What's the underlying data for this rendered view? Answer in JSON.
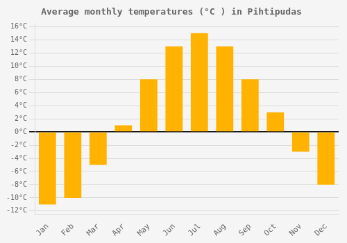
{
  "chart_data": {
    "type": "bar",
    "title": "Average monthly temperatures (°C ) in Pihtipudas",
    "categories": [
      "Jan",
      "Feb",
      "Mar",
      "Apr",
      "May",
      "Jun",
      "Jul",
      "Aug",
      "Sep",
      "Oct",
      "Nov",
      "Dec"
    ],
    "values": [
      -11,
      -10,
      -5,
      1,
      8,
      13,
      15,
      13,
      8,
      3,
      -3,
      -8
    ],
    "color": "#FFB300",
    "ylim": [
      -12.5,
      16.5
    ],
    "yticks": [
      {
        "value": -12,
        "label": "-12°C"
      },
      {
        "value": -10,
        "label": "-10°C"
      },
      {
        "value": -8,
        "label": "-8°C"
      },
      {
        "value": -6,
        "label": "-6°C"
      },
      {
        "value": -4,
        "label": "-4°C"
      },
      {
        "value": -2,
        "label": "-2°C"
      },
      {
        "value": 0,
        "label": "0°C"
      },
      {
        "value": 2,
        "label": "2°C"
      },
      {
        "value": 4,
        "label": "4°C"
      },
      {
        "value": 6,
        "label": "6°C"
      },
      {
        "value": 8,
        "label": "8°C"
      },
      {
        "value": 10,
        "label": "10°C"
      },
      {
        "value": 12,
        "label": "12°C"
      },
      {
        "value": 14,
        "label": "14°C"
      },
      {
        "value": 16,
        "label": "16°C"
      }
    ],
    "grid": true
  }
}
